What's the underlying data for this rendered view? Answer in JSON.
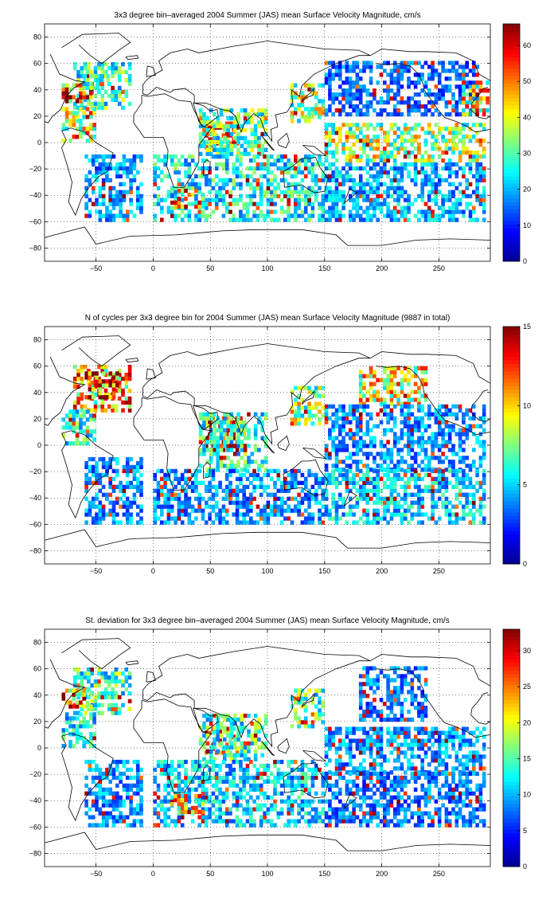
{
  "colorscale": [
    "#00008f",
    "#0000ff",
    "#0080ff",
    "#00ffff",
    "#80ff80",
    "#ffff00",
    "#ff8000",
    "#ff0000",
    "#800000"
  ],
  "chart_data": [
    {
      "type": "heatmap",
      "title": "3x3 degree bin–averaged 2004 Summer (JAS) mean Surface Velocity Magnitude, cm/s",
      "xlim": [
        -95,
        295
      ],
      "ylim": [
        -90,
        90
      ],
      "xticks": [
        -50,
        0,
        50,
        100,
        150,
        200,
        250
      ],
      "yticks": [
        80,
        60,
        40,
        20,
        0,
        -20,
        -40,
        -60,
        -80
      ],
      "xtick_labels": [
        "−50",
        "0",
        "50",
        "100",
        "150",
        "200",
        "250"
      ],
      "ytick_labels": [
        "80",
        "60",
        "40",
        "20",
        "0",
        "−20",
        "−40",
        "−60",
        "−80"
      ],
      "colorbar": {
        "min": 0,
        "max": 66,
        "ticks": [
          0,
          10,
          20,
          30,
          40,
          50,
          60
        ],
        "tick_labels": [
          "0",
          "10",
          "20",
          "30",
          "40",
          "50",
          "60"
        ]
      },
      "grid": true,
      "bin_size_deg": 3,
      "regions": [
        {
          "x": [
            -70,
            -20
          ],
          "y": [
            25,
            60
          ],
          "v": 28
        },
        {
          "x": [
            -80,
            -55
          ],
          "y": [
            30,
            45
          ],
          "v": 55
        },
        {
          "x": [
            -65,
            -40
          ],
          "y": [
            40,
            55
          ],
          "v": 30
        },
        {
          "x": [
            -80,
            -50
          ],
          "y": [
            0,
            25
          ],
          "v": 40
        },
        {
          "x": [
            -60,
            -10
          ],
          "y": [
            -60,
            -10
          ],
          "v": 18
        },
        {
          "x": [
            45,
            75
          ],
          "y": [
            -5,
            15
          ],
          "v": 55
        },
        {
          "x": [
            40,
            100
          ],
          "y": [
            -10,
            25
          ],
          "v": 30
        },
        {
          "x": [
            0,
            150
          ],
          "y": [
            -60,
            -10
          ],
          "v": 25
        },
        {
          "x": [
            15,
            45
          ],
          "y": [
            -50,
            -35
          ],
          "v": 45
        },
        {
          "x": [
            120,
            150
          ],
          "y": [
            15,
            45
          ],
          "v": 35
        },
        {
          "x": [
            150,
            285
          ],
          "y": [
            20,
            60
          ],
          "v": 15
        },
        {
          "x": [
            150,
            290
          ],
          "y": [
            -15,
            15
          ],
          "v": 35
        },
        {
          "x": [
            150,
            290
          ],
          "y": [
            -60,
            -15
          ],
          "v": 20
        },
        {
          "x": [
            270,
            292
          ],
          "y": [
            20,
            45
          ],
          "v": 40
        }
      ]
    },
    {
      "type": "heatmap",
      "title": "N of cycles per 3x3 degree bin for 2004 Summer (JAS) mean Surface Velocity Magnitude (9887 in total)",
      "xlim": [
        -95,
        295
      ],
      "ylim": [
        -90,
        90
      ],
      "xticks": [
        -50,
        0,
        50,
        100,
        150,
        200,
        250
      ],
      "yticks": [
        80,
        60,
        40,
        20,
        0,
        -20,
        -40,
        -60,
        -80
      ],
      "xtick_labels": [
        "−50",
        "0",
        "50",
        "100",
        "150",
        "200",
        "250"
      ],
      "ytick_labels": [
        "80",
        "60",
        "40",
        "20",
        "0",
        "−20",
        "−40",
        "−60",
        "−80"
      ],
      "colorbar": {
        "min": 0,
        "max": 15,
        "ticks": [
          0,
          5,
          10,
          15
        ],
        "tick_labels": [
          "0",
          "5",
          "10",
          "15"
        ]
      },
      "grid": true,
      "bin_size_deg": 3,
      "regions": [
        {
          "x": [
            -70,
            -20
          ],
          "y": [
            25,
            60
          ],
          "v": 10
        },
        {
          "x": [
            -60,
            -30
          ],
          "y": [
            35,
            55
          ],
          "v": 13
        },
        {
          "x": [
            -80,
            -50
          ],
          "y": [
            0,
            25
          ],
          "v": 6
        },
        {
          "x": [
            -60,
            -10
          ],
          "y": [
            -60,
            -10
          ],
          "v": 4
        },
        {
          "x": [
            45,
            80
          ],
          "y": [
            -5,
            20
          ],
          "v": 13
        },
        {
          "x": [
            40,
            100
          ],
          "y": [
            -20,
            25
          ],
          "v": 6
        },
        {
          "x": [
            0,
            150
          ],
          "y": [
            -60,
            -20
          ],
          "v": 4
        },
        {
          "x": [
            120,
            150
          ],
          "y": [
            15,
            45
          ],
          "v": 8
        },
        {
          "x": [
            180,
            240
          ],
          "y": [
            30,
            60
          ],
          "v": 9
        },
        {
          "x": [
            150,
            290
          ],
          "y": [
            -20,
            30
          ],
          "v": 4
        },
        {
          "x": [
            150,
            290
          ],
          "y": [
            -60,
            -20
          ],
          "v": 5
        }
      ]
    },
    {
      "type": "heatmap",
      "title": "St. deviation for 3x3 degree bin–averaged 2004 Summer (JAS) mean Surface Velocity Magnitude, cm/s",
      "xlim": [
        -95,
        295
      ],
      "ylim": [
        -90,
        90
      ],
      "xticks": [
        -50,
        0,
        50,
        100,
        150,
        200,
        250
      ],
      "yticks": [
        80,
        60,
        40,
        20,
        0,
        -20,
        -40,
        -60,
        -80
      ],
      "xtick_labels": [
        "−50",
        "0",
        "50",
        "100",
        "150",
        "200",
        "250"
      ],
      "ytick_labels": [
        "80",
        "60",
        "40",
        "20",
        "0",
        "−20",
        "−40",
        "−60",
        "−80"
      ],
      "colorbar": {
        "min": 0,
        "max": 33,
        "ticks": [
          0,
          5,
          10,
          15,
          20,
          25,
          30
        ],
        "tick_labels": [
          "0",
          "5",
          "10",
          "15",
          "20",
          "25",
          "30"
        ]
      },
      "grid": true,
      "bin_size_deg": 3,
      "regions": [
        {
          "x": [
            -70,
            -20
          ],
          "y": [
            25,
            60
          ],
          "v": 14
        },
        {
          "x": [
            -80,
            -55
          ],
          "y": [
            30,
            45
          ],
          "v": 26
        },
        {
          "x": [
            -80,
            -50
          ],
          "y": [
            0,
            25
          ],
          "v": 12
        },
        {
          "x": [
            -60,
            -10
          ],
          "y": [
            -60,
            -10
          ],
          "v": 9
        },
        {
          "x": [
            45,
            75
          ],
          "y": [
            -5,
            15
          ],
          "v": 22
        },
        {
          "x": [
            40,
            100
          ],
          "y": [
            -10,
            25
          ],
          "v": 14
        },
        {
          "x": [
            0,
            150
          ],
          "y": [
            -60,
            -10
          ],
          "v": 11
        },
        {
          "x": [
            15,
            45
          ],
          "y": [
            -50,
            -35
          ],
          "v": 20
        },
        {
          "x": [
            120,
            150
          ],
          "y": [
            15,
            45
          ],
          "v": 15
        },
        {
          "x": [
            180,
            240
          ],
          "y": [
            20,
            60
          ],
          "v": 8
        },
        {
          "x": [
            150,
            290
          ],
          "y": [
            -20,
            15
          ],
          "v": 9
        },
        {
          "x": [
            150,
            290
          ],
          "y": [
            -60,
            -20
          ],
          "v": 8
        }
      ]
    }
  ]
}
